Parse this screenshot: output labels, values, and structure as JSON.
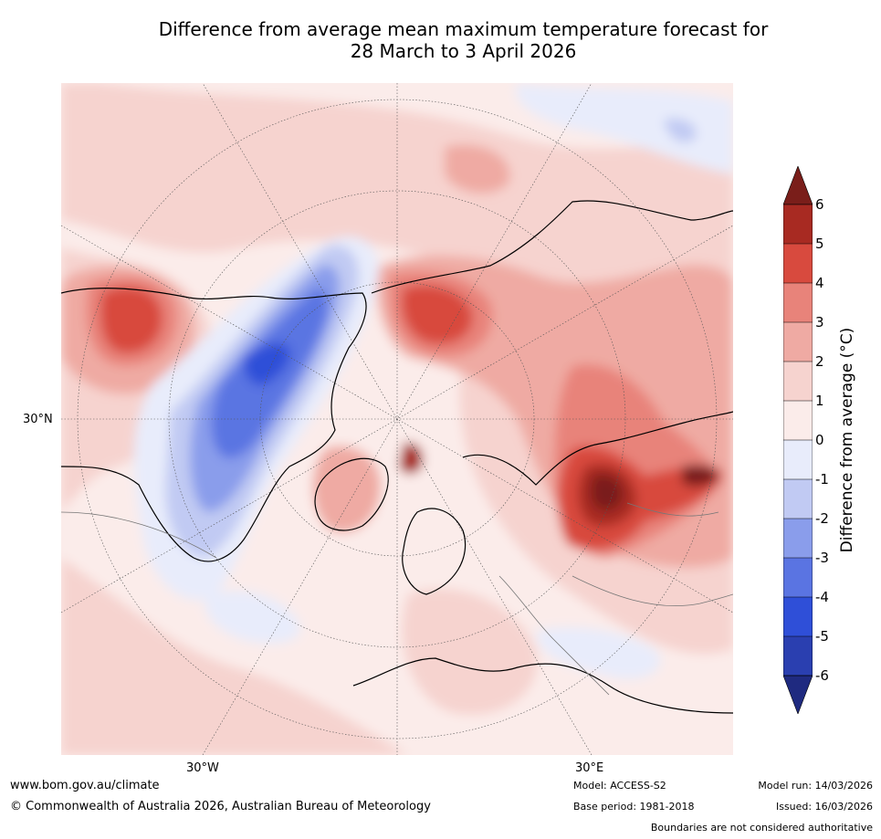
{
  "title_line1": "Difference from average mean maximum temperature forecast for",
  "title_line2": "28 March to 3 April 2026",
  "map": {
    "labels": {
      "lat_30n": "30°N",
      "lon_30w": "30°W",
      "lon_30e": "30°E"
    }
  },
  "colorbar": {
    "label": "Difference from average (°C)",
    "ticks": [
      "6",
      "5",
      "4",
      "3",
      "2",
      "1",
      "0",
      "-1",
      "-2",
      "-3",
      "-4",
      "-5",
      "-6"
    ],
    "colors": {
      "above_6": "#7a1e1a",
      "5_6": "#a82a22",
      "4_5": "#d84a3e",
      "3_4": "#e8837a",
      "2_3": "#efaaa3",
      "1_2": "#f6d3cf",
      "0_1": "#fbecea",
      "m1_0": "#e8ecfb",
      "m2_m1": "#c1caf3",
      "m3_m2": "#8a9deb",
      "m4_m3": "#5a74e2",
      "m5_m4": "#2f4fd8",
      "m6_m5": "#2a3fb0",
      "below_m6": "#1f2a80"
    }
  },
  "footer": {
    "website": "www.bom.gov.au/climate",
    "copyright": "© Commonwealth of Australia 2026, Australian Bureau of Meteorology",
    "model": "Model: ACCESS-S2",
    "base_period": "Base period: 1981-2018",
    "model_run": "Model run: 14/03/2026",
    "issued": "Issued: 16/03/2026",
    "disclaimer": "Boundaries are not considered authoritative"
  }
}
